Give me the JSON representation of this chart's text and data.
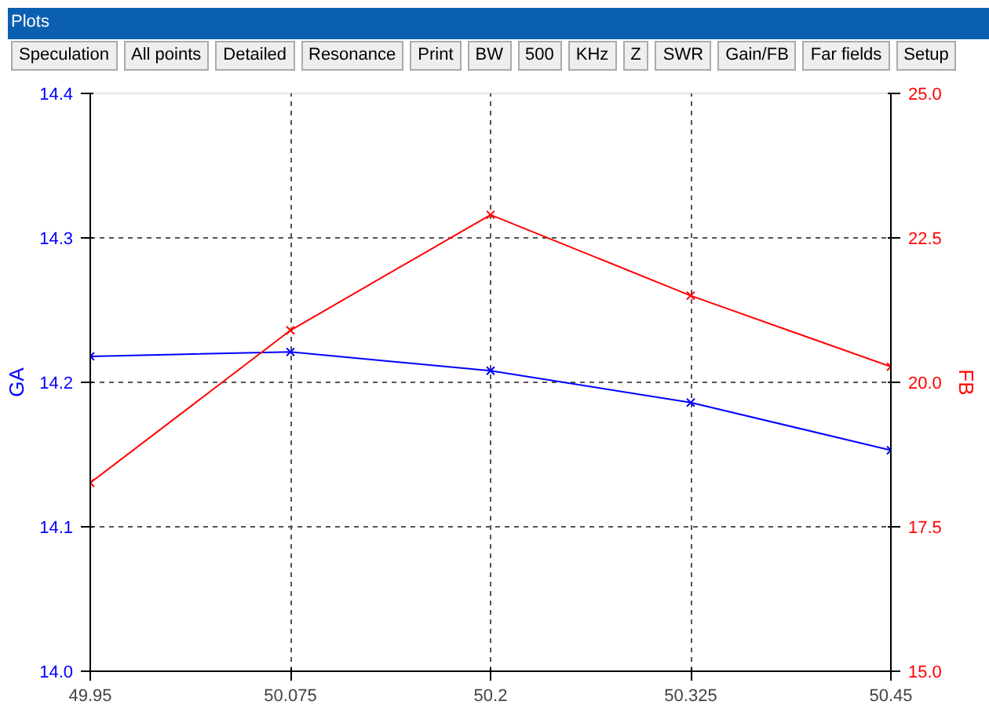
{
  "chart_data": {
    "type": "line",
    "title": "Plots",
    "annotations": [
      "Speculation",
      "All points",
      "Detailed",
      "Resonance",
      "Print",
      "BW",
      "500",
      "KHz",
      "Z",
      "SWR",
      "Gain/FB",
      "Far fields",
      "Setup"
    ],
    "x": [
      49.95,
      50.075,
      50.2,
      50.325,
      50.45
    ],
    "xlim": [
      49.95,
      50.45
    ],
    "xticks": [
      49.95,
      50.075,
      50.2,
      50.325,
      50.45
    ],
    "ylabel": "GA",
    "y2label": "FB",
    "ylim": [
      14.0,
      14.4
    ],
    "yticks": [
      {
        "value": 14.0,
        "label": "14.0"
      },
      14.1,
      14.2,
      14.3,
      14.4
    ],
    "y2lim": [
      15.0,
      25.0
    ],
    "y2ticks": [
      {
        "value": 15.0,
        "label": "15.0"
      },
      17.5,
      {
        "value": 20.0,
        "label": "20.0"
      },
      22.5,
      {
        "value": 25.0,
        "label": "25.0"
      }
    ],
    "series": [
      {
        "color": "#0000ff",
        "values": [
          14.218,
          14.221,
          14.208,
          14.186,
          14.153
        ]
      },
      {
        "color": "#ff0000",
        "axis": "y2",
        "values": [
          18.26,
          20.9,
          22.9,
          21.5,
          20.27
        ]
      }
    ],
    "grid": true,
    "marker": "cross",
    "line_style": "solid"
  }
}
